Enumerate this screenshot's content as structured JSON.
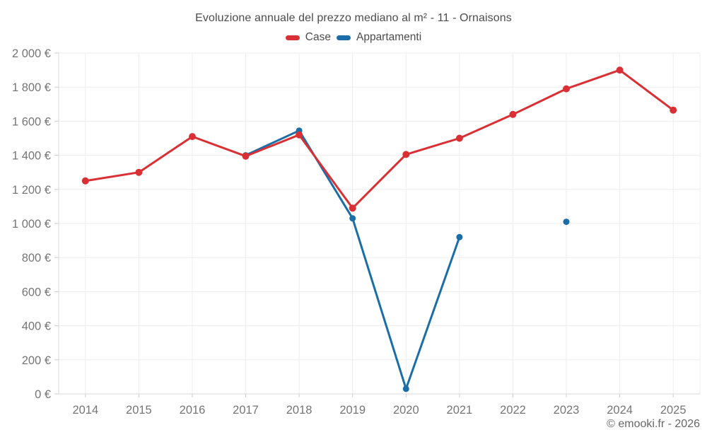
{
  "page": {
    "background": "#ffffff"
  },
  "chart_data": {
    "type": "line",
    "title": "Evoluzione annuale del prezzo mediano al m² - 11 - Ornaisons",
    "legend_position": "top",
    "grid": true,
    "categories": [
      "2014",
      "2015",
      "2016",
      "2017",
      "2018",
      "2019",
      "2020",
      "2021",
      "2022",
      "2023",
      "2024",
      "2025"
    ],
    "series": [
      {
        "name": "Case",
        "color": "#d93035",
        "values": [
          1250,
          1300,
          1510,
          1395,
          1520,
          1090,
          1405,
          1500,
          1640,
          1790,
          1900,
          1665
        ]
      },
      {
        "name": "Appartamenti",
        "color": "#1a6da6",
        "values": [
          null,
          null,
          null,
          1400,
          1545,
          1030,
          30,
          920,
          null,
          1010,
          null,
          null
        ]
      }
    ],
    "ylim": [
      0,
      2000
    ],
    "yticks": [
      {
        "value": 0,
        "label": "0 €"
      },
      {
        "value": 200,
        "label": "200 €"
      },
      {
        "value": 400,
        "label": "400 €"
      },
      {
        "value": 600,
        "label": "600 €"
      },
      {
        "value": 800,
        "label": "800 €"
      },
      {
        "value": 1000,
        "label": "1 000 €"
      },
      {
        "value": 1200,
        "label": "1 200 €"
      },
      {
        "value": 1400,
        "label": "1 400 €"
      },
      {
        "value": 1600,
        "label": "1 600 €"
      },
      {
        "value": 1800,
        "label": "1 800 €"
      },
      {
        "value": 2000,
        "label": "2 000 €"
      }
    ],
    "colors": {
      "grid": "#ededed",
      "axis": "#d9d9d9",
      "tick": "#cccccc",
      "axis_text": "#757575",
      "title_text": "#4c4c4c"
    }
  },
  "footer": {
    "copyright": "© emooki.fr - 2026"
  }
}
